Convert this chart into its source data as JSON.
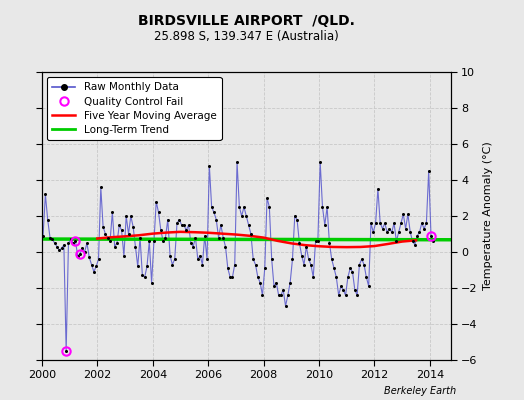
{
  "title": "BIRDSVILLE AIRPORT  /QLD.",
  "subtitle": "25.898 S, 139.347 E (Australia)",
  "ylabel": "Temperature Anomaly (°C)",
  "xlabel_credit": "Berkeley Earth",
  "ylim": [
    -6,
    10
  ],
  "yticks": [
    -6,
    -4,
    -2,
    0,
    2,
    4,
    6,
    8,
    10
  ],
  "xlim": [
    2000.0,
    2014.75
  ],
  "xticks": [
    2000,
    2002,
    2004,
    2006,
    2008,
    2010,
    2012,
    2014
  ],
  "bg_color": "#e8e8e8",
  "grid_color": "#c8c8c8",
  "long_term_trend_x": [
    2000.0,
    2014.75
  ],
  "long_term_trend_y": [
    0.72,
    0.68
  ],
  "long_term_trend_color": "#00cc00",
  "moving_avg_color": "#ff0000",
  "raw_line_color": "#5555cc",
  "raw_dot_color": "#000000",
  "qc_fail_color": "#ff00ff",
  "raw_monthly_data": [
    [
      2000.042,
      0.9
    ],
    [
      2000.125,
      3.2
    ],
    [
      2000.208,
      1.8
    ],
    [
      2000.292,
      0.8
    ],
    [
      2000.375,
      0.7
    ],
    [
      2000.458,
      0.5
    ],
    [
      2000.542,
      0.3
    ],
    [
      2000.625,
      0.1
    ],
    [
      2000.708,
      0.2
    ],
    [
      2000.792,
      0.4
    ],
    [
      2000.875,
      -5.5
    ],
    [
      2000.958,
      0.5
    ],
    [
      2001.042,
      0.7
    ],
    [
      2001.125,
      0.5
    ],
    [
      2001.208,
      0.6
    ],
    [
      2001.292,
      -0.2
    ],
    [
      2001.375,
      -0.1
    ],
    [
      2001.458,
      0.2
    ],
    [
      2001.542,
      0.0
    ],
    [
      2001.625,
      0.5
    ],
    [
      2001.708,
      -0.3
    ],
    [
      2001.792,
      -0.7
    ],
    [
      2001.875,
      -1.1
    ],
    [
      2001.958,
      -0.8
    ],
    [
      2002.042,
      -0.4
    ],
    [
      2002.125,
      3.6
    ],
    [
      2002.208,
      1.4
    ],
    [
      2002.292,
      1.0
    ],
    [
      2002.375,
      0.8
    ],
    [
      2002.458,
      0.6
    ],
    [
      2002.542,
      2.2
    ],
    [
      2002.625,
      0.3
    ],
    [
      2002.708,
      0.5
    ],
    [
      2002.792,
      1.5
    ],
    [
      2002.875,
      1.2
    ],
    [
      2002.958,
      -0.2
    ],
    [
      2003.042,
      2.0
    ],
    [
      2003.125,
      1.0
    ],
    [
      2003.208,
      2.0
    ],
    [
      2003.292,
      1.4
    ],
    [
      2003.375,
      0.3
    ],
    [
      2003.458,
      -0.8
    ],
    [
      2003.542,
      0.8
    ],
    [
      2003.625,
      -1.3
    ],
    [
      2003.708,
      -1.4
    ],
    [
      2003.792,
      -0.8
    ],
    [
      2003.875,
      0.6
    ],
    [
      2003.958,
      -1.7
    ],
    [
      2004.042,
      0.6
    ],
    [
      2004.125,
      2.8
    ],
    [
      2004.208,
      2.2
    ],
    [
      2004.292,
      1.2
    ],
    [
      2004.375,
      0.6
    ],
    [
      2004.458,
      0.8
    ],
    [
      2004.542,
      1.8
    ],
    [
      2004.625,
      -0.2
    ],
    [
      2004.708,
      -0.7
    ],
    [
      2004.792,
      -0.4
    ],
    [
      2004.875,
      1.6
    ],
    [
      2004.958,
      1.8
    ],
    [
      2005.042,
      1.5
    ],
    [
      2005.125,
      1.5
    ],
    [
      2005.208,
      1.2
    ],
    [
      2005.292,
      1.5
    ],
    [
      2005.375,
      0.5
    ],
    [
      2005.458,
      0.3
    ],
    [
      2005.542,
      0.8
    ],
    [
      2005.625,
      -0.4
    ],
    [
      2005.708,
      -0.2
    ],
    [
      2005.792,
      -0.7
    ],
    [
      2005.875,
      0.9
    ],
    [
      2005.958,
      -0.4
    ],
    [
      2006.042,
      4.8
    ],
    [
      2006.125,
      2.5
    ],
    [
      2006.208,
      2.2
    ],
    [
      2006.292,
      1.8
    ],
    [
      2006.375,
      0.8
    ],
    [
      2006.458,
      1.5
    ],
    [
      2006.542,
      0.8
    ],
    [
      2006.625,
      0.3
    ],
    [
      2006.708,
      -0.9
    ],
    [
      2006.792,
      -1.4
    ],
    [
      2006.875,
      -1.4
    ],
    [
      2006.958,
      -0.7
    ],
    [
      2007.042,
      5.0
    ],
    [
      2007.125,
      2.5
    ],
    [
      2007.208,
      2.0
    ],
    [
      2007.292,
      2.5
    ],
    [
      2007.375,
      2.0
    ],
    [
      2007.458,
      1.5
    ],
    [
      2007.542,
      1.0
    ],
    [
      2007.625,
      -0.4
    ],
    [
      2007.708,
      -0.7
    ],
    [
      2007.792,
      -1.4
    ],
    [
      2007.875,
      -1.7
    ],
    [
      2007.958,
      -2.4
    ],
    [
      2008.042,
      -0.9
    ],
    [
      2008.125,
      3.0
    ],
    [
      2008.208,
      2.5
    ],
    [
      2008.292,
      -0.4
    ],
    [
      2008.375,
      -1.9
    ],
    [
      2008.458,
      -1.7
    ],
    [
      2008.542,
      -2.4
    ],
    [
      2008.625,
      -2.4
    ],
    [
      2008.708,
      -2.1
    ],
    [
      2008.792,
      -3.0
    ],
    [
      2008.875,
      -2.4
    ],
    [
      2008.958,
      -1.7
    ],
    [
      2009.042,
      -0.4
    ],
    [
      2009.125,
      2.0
    ],
    [
      2009.208,
      1.8
    ],
    [
      2009.292,
      0.5
    ],
    [
      2009.375,
      -0.2
    ],
    [
      2009.458,
      -0.7
    ],
    [
      2009.542,
      0.3
    ],
    [
      2009.625,
      -0.4
    ],
    [
      2009.708,
      -0.7
    ],
    [
      2009.792,
      -1.4
    ],
    [
      2009.875,
      0.6
    ],
    [
      2009.958,
      0.6
    ],
    [
      2010.042,
      5.0
    ],
    [
      2010.125,
      2.5
    ],
    [
      2010.208,
      1.5
    ],
    [
      2010.292,
      2.5
    ],
    [
      2010.375,
      0.5
    ],
    [
      2010.458,
      -0.4
    ],
    [
      2010.542,
      -0.9
    ],
    [
      2010.625,
      -1.4
    ],
    [
      2010.708,
      -2.4
    ],
    [
      2010.792,
      -1.9
    ],
    [
      2010.875,
      -2.1
    ],
    [
      2010.958,
      -2.4
    ],
    [
      2011.042,
      -1.4
    ],
    [
      2011.125,
      -0.9
    ],
    [
      2011.208,
      -1.1
    ],
    [
      2011.292,
      -2.1
    ],
    [
      2011.375,
      -2.4
    ],
    [
      2011.458,
      -0.7
    ],
    [
      2011.542,
      -0.4
    ],
    [
      2011.625,
      -0.7
    ],
    [
      2011.708,
      -1.4
    ],
    [
      2011.792,
      -1.9
    ],
    [
      2011.875,
      1.6
    ],
    [
      2011.958,
      1.1
    ],
    [
      2012.042,
      1.6
    ],
    [
      2012.125,
      3.5
    ],
    [
      2012.208,
      1.6
    ],
    [
      2012.292,
      1.3
    ],
    [
      2012.375,
      1.6
    ],
    [
      2012.458,
      1.1
    ],
    [
      2012.542,
      1.3
    ],
    [
      2012.625,
      1.1
    ],
    [
      2012.708,
      1.6
    ],
    [
      2012.792,
      0.6
    ],
    [
      2012.875,
      1.1
    ],
    [
      2012.958,
      1.6
    ],
    [
      2013.042,
      2.1
    ],
    [
      2013.125,
      1.3
    ],
    [
      2013.208,
      2.1
    ],
    [
      2013.292,
      1.1
    ],
    [
      2013.375,
      0.6
    ],
    [
      2013.458,
      0.4
    ],
    [
      2013.542,
      0.9
    ],
    [
      2013.625,
      1.1
    ],
    [
      2013.708,
      1.6
    ],
    [
      2013.792,
      1.3
    ],
    [
      2013.875,
      1.6
    ],
    [
      2013.958,
      4.5
    ],
    [
      2014.042,
      0.9
    ],
    [
      2014.125,
      0.6
    ]
  ],
  "qc_fail_points": [
    [
      2000.875,
      -5.5
    ],
    [
      2001.208,
      0.6
    ],
    [
      2001.375,
      -0.1
    ],
    [
      2014.042,
      0.9
    ]
  ],
  "moving_avg": [
    [
      2002.0,
      0.75
    ],
    [
      2002.5,
      0.82
    ],
    [
      2003.0,
      0.87
    ],
    [
      2003.5,
      0.93
    ],
    [
      2004.0,
      1.02
    ],
    [
      2004.5,
      1.08
    ],
    [
      2005.0,
      1.12
    ],
    [
      2005.5,
      1.1
    ],
    [
      2006.0,
      1.07
    ],
    [
      2006.5,
      1.02
    ],
    [
      2007.0,
      0.97
    ],
    [
      2007.5,
      0.9
    ],
    [
      2008.0,
      0.8
    ],
    [
      2008.5,
      0.62
    ],
    [
      2009.0,
      0.48
    ],
    [
      2009.5,
      0.38
    ],
    [
      2010.0,
      0.32
    ],
    [
      2010.5,
      0.28
    ],
    [
      2011.0,
      0.27
    ],
    [
      2011.5,
      0.28
    ],
    [
      2012.0,
      0.33
    ],
    [
      2012.5,
      0.45
    ],
    [
      2013.0,
      0.58
    ],
    [
      2013.5,
      0.65
    ]
  ]
}
